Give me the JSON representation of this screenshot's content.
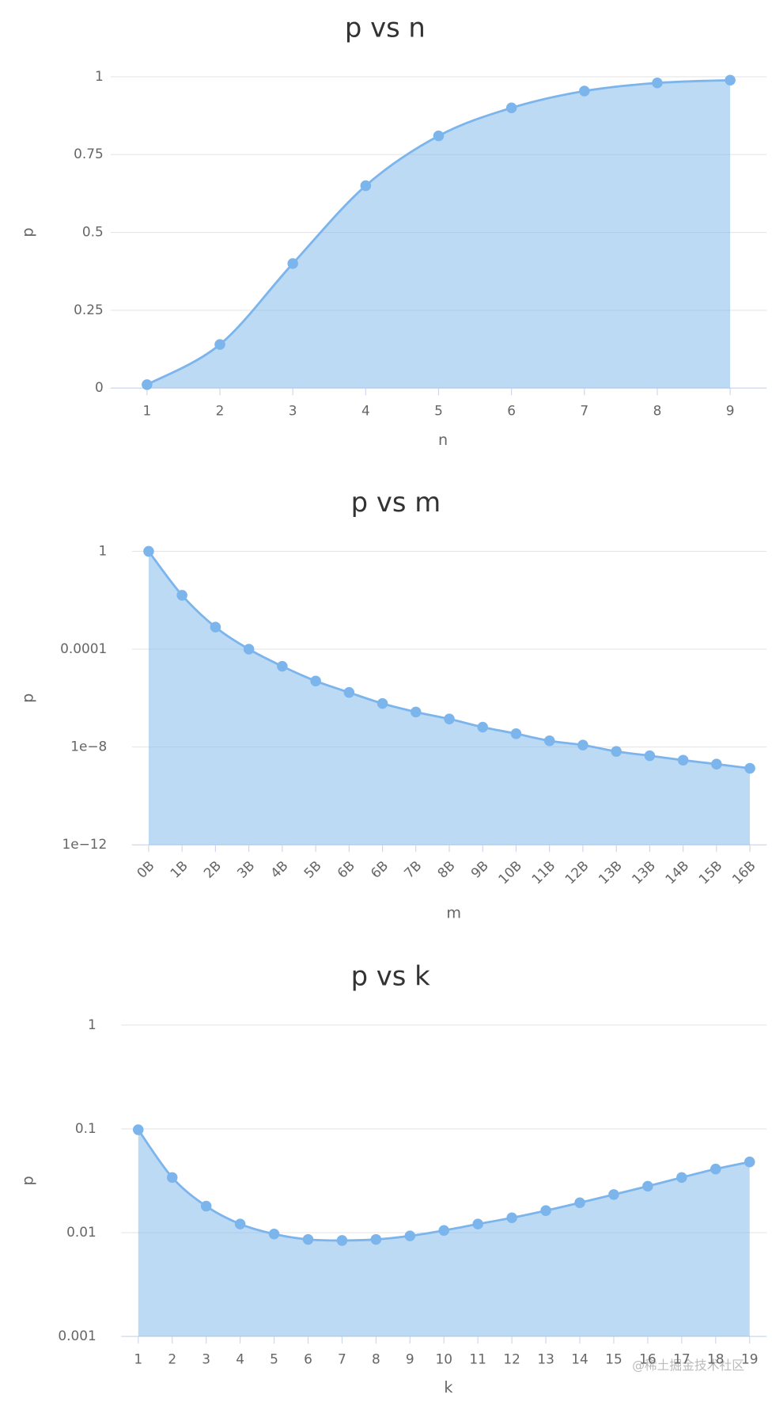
{
  "chart_data": [
    {
      "type": "area",
      "title": "p vs n",
      "x_label": "n",
      "y_label": "p",
      "x": [
        1,
        2,
        3,
        4,
        5,
        6,
        7,
        8,
        9
      ],
      "values": [
        0.011,
        0.14,
        0.4,
        0.65,
        0.81,
        0.9,
        0.954,
        0.98,
        0.989
      ],
      "color": "#7cb5ec",
      "xlim": [
        0.5,
        9.5
      ],
      "xticks": [
        1,
        2,
        3,
        4,
        5,
        6,
        7,
        8,
        9
      ],
      "ylim": [
        0,
        1
      ],
      "yticks": [
        0,
        0.25,
        0.5,
        0.75,
        1
      ],
      "grid": true
    },
    {
      "type": "area",
      "title": "p vs m",
      "x_label": "m",
      "y_label": "p",
      "categories": [
        "0B",
        "1B",
        "2B",
        "3B",
        "4B",
        "5B",
        "6B",
        "6B",
        "7B",
        "8B",
        "9B",
        "10B",
        "11B",
        "12B",
        "13B",
        "13B",
        "14B",
        "15B",
        "16B"
      ],
      "values": [
        1,
        0.016,
        0.0008,
        0.0001,
        2e-05,
        5e-06,
        1.7e-06,
        6e-07,
        2.7e-07,
        1.4e-07,
        6.5e-08,
        3.5e-08,
        1.8e-08,
        1.2e-08,
        6.6e-09,
        4.4e-09,
        2.9e-09,
        2e-09,
        1.35e-09
      ],
      "color": "#7cb5ec",
      "log_y": true,
      "ylim": [
        1e-12,
        1
      ],
      "yticks": [
        {
          "value": 1e-12,
          "label": "1e−12"
        },
        {
          "value": 1e-08,
          "label": "1e−8"
        },
        0.0001,
        1
      ],
      "grid": true
    },
    {
      "type": "area",
      "title": "p vs k",
      "x_label": "k",
      "y_label": "p",
      "x": [
        1,
        2,
        3,
        4,
        5,
        6,
        7,
        8,
        9,
        10,
        11,
        12,
        13,
        14,
        15,
        16,
        17,
        18,
        19
      ],
      "values": [
        0.098,
        0.034,
        0.018,
        0.0121,
        0.0097,
        0.0086,
        0.0084,
        0.0086,
        0.0093,
        0.0105,
        0.0121,
        0.0139,
        0.0163,
        0.0194,
        0.0233,
        0.028,
        0.034,
        0.041,
        0.048
      ],
      "color": "#7cb5ec",
      "xlim": [
        0.5,
        19.5
      ],
      "xticks": [
        1,
        2,
        3,
        4,
        5,
        6,
        7,
        8,
        9,
        10,
        11,
        12,
        13,
        14,
        15,
        16,
        17,
        18,
        19
      ],
      "log_y": true,
      "ylim": [
        0.001,
        1
      ],
      "yticks": [
        0.001,
        0.01,
        0.1,
        1
      ],
      "grid": true
    }
  ],
  "watermark": "@稀土掘金技术社区"
}
